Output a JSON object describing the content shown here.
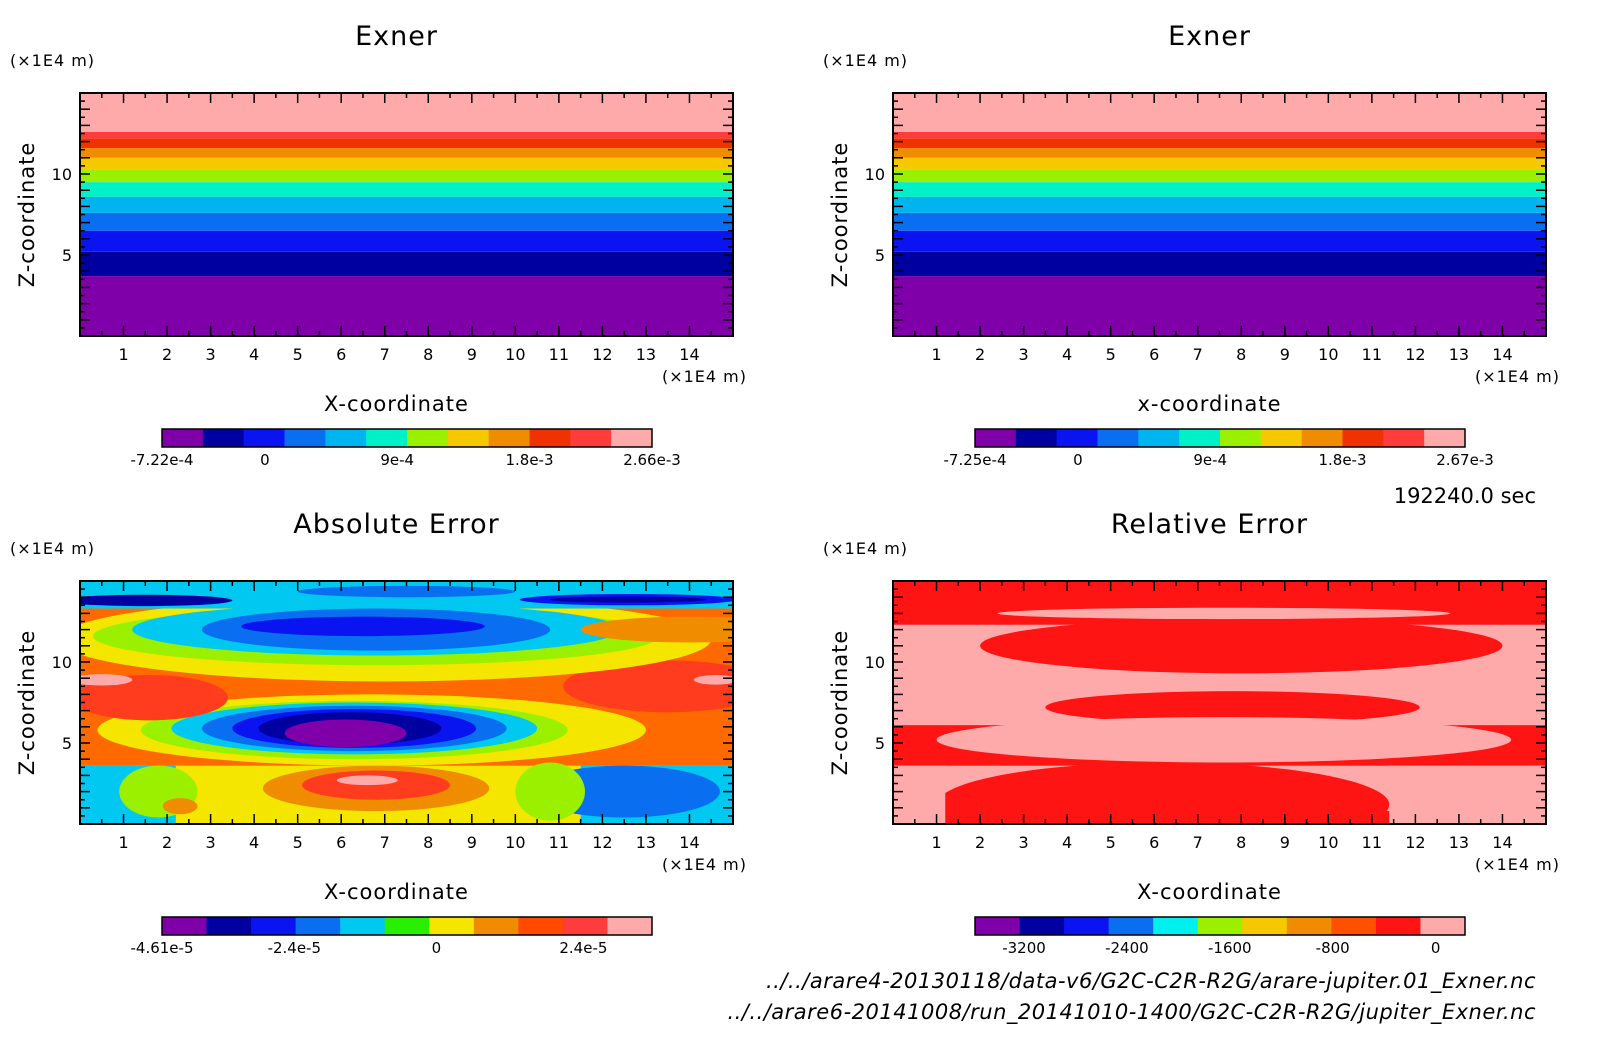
{
  "figure": {
    "time_label": "192240.0 sec",
    "file_paths": [
      "../../arare4-20130118/data-v6/G2C-C2R-R2G/arare-jupiter.01_Exner.nc",
      "../../arare6-20141008/run_20141010-1400/G2C-C2R-R2G/jupiter_Exner.nc"
    ]
  },
  "chart_data": [
    {
      "type": "contour",
      "title": "Exner",
      "xlabel": "X-coordinate",
      "ylabel": "Z-coordinate",
      "x_unit": "(×1E4 m)",
      "y_unit": "(×1E4 m)",
      "xlim": [
        0,
        15
      ],
      "ylim": [
        0,
        15
      ],
      "xticks": [
        "1",
        "2",
        "3",
        "4",
        "5",
        "6",
        "7",
        "8",
        "9",
        "10",
        "11",
        "12",
        "13",
        "14"
      ],
      "yticks": [
        "5",
        "10"
      ],
      "pattern": "horizontal",
      "bands": [
        {
          "z0": 0,
          "z1": 3.7,
          "color": "#7f00a8"
        },
        {
          "z0": 3.7,
          "z1": 5.2,
          "color": "#0000a0"
        },
        {
          "z0": 5.2,
          "z1": 6.5,
          "color": "#0a14f0"
        },
        {
          "z0": 6.5,
          "z1": 7.6,
          "color": "#0a6ef0"
        },
        {
          "z0": 7.6,
          "z1": 8.6,
          "color": "#00b4f0"
        },
        {
          "z0": 8.6,
          "z1": 9.5,
          "color": "#00f0c8"
        },
        {
          "z0": 9.5,
          "z1": 10.3,
          "color": "#9bf000"
        },
        {
          "z0": 10.3,
          "z1": 11.0,
          "color": "#f5c800"
        },
        {
          "z0": 11.0,
          "z1": 11.6,
          "color": "#f08c00"
        },
        {
          "z0": 11.6,
          "z1": 12.2,
          "color": "#f03200"
        },
        {
          "z0": 12.2,
          "z1": 12.6,
          "color": "#ff3c3c"
        },
        {
          "z0": 12.6,
          "z1": 15,
          "color": "#ffaaaa"
        }
      ],
      "colorbar": {
        "colors": [
          "#7f00a8",
          "#0000a0",
          "#0a14f0",
          "#0a6ef0",
          "#00b4f0",
          "#00f0c8",
          "#9bf000",
          "#f5c800",
          "#f08c00",
          "#f03200",
          "#ff3c3c",
          "#ffaaaa"
        ],
        "labels": [
          "-7.22e-4",
          "0",
          "9e-4",
          "1.8e-3",
          "2.66e-3"
        ],
        "label_pos": [
          0,
          0.21,
          0.48,
          0.75,
          1
        ]
      }
    },
    {
      "type": "contour",
      "title": "Exner",
      "xlabel": "x-coordinate",
      "ylabel": "Z-coordinate",
      "x_unit": "(×1E4 m)",
      "y_unit": "(×1E4 m)",
      "xlim": [
        0,
        15
      ],
      "ylim": [
        0,
        15
      ],
      "xticks": [
        "1",
        "2",
        "3",
        "4",
        "5",
        "6",
        "7",
        "8",
        "9",
        "10",
        "11",
        "12",
        "13",
        "14"
      ],
      "yticks": [
        "5",
        "10"
      ],
      "pattern": "horizontal",
      "bands": [
        {
          "z0": 0,
          "z1": 3.7,
          "color": "#7f00a8"
        },
        {
          "z0": 3.7,
          "z1": 5.2,
          "color": "#0000a0"
        },
        {
          "z0": 5.2,
          "z1": 6.5,
          "color": "#0a14f0"
        },
        {
          "z0": 6.5,
          "z1": 7.6,
          "color": "#0a6ef0"
        },
        {
          "z0": 7.6,
          "z1": 8.6,
          "color": "#00b4f0"
        },
        {
          "z0": 8.6,
          "z1": 9.5,
          "color": "#00f0c8"
        },
        {
          "z0": 9.5,
          "z1": 10.3,
          "color": "#9bf000"
        },
        {
          "z0": 10.3,
          "z1": 11.0,
          "color": "#f5c800"
        },
        {
          "z0": 11.0,
          "z1": 11.6,
          "color": "#f08c00"
        },
        {
          "z0": 11.6,
          "z1": 12.2,
          "color": "#f03200"
        },
        {
          "z0": 12.2,
          "z1": 12.6,
          "color": "#ff3c3c"
        },
        {
          "z0": 12.6,
          "z1": 15,
          "color": "#ffaaaa"
        }
      ],
      "colorbar": {
        "colors": [
          "#7f00a8",
          "#0000a0",
          "#0a14f0",
          "#0a6ef0",
          "#00b4f0",
          "#00f0c8",
          "#9bf000",
          "#f5c800",
          "#f08c00",
          "#f03200",
          "#ff3c3c",
          "#ffaaaa"
        ],
        "labels": [
          "-7.25e-4",
          "0",
          "9e-4",
          "1.8e-3",
          "2.67e-3"
        ],
        "label_pos": [
          0,
          0.21,
          0.48,
          0.75,
          1
        ]
      }
    },
    {
      "type": "contour",
      "title": "Absolute Error",
      "xlabel": "X-coordinate",
      "ylabel": "Z-coordinate",
      "x_unit": "(×1E4 m)",
      "y_unit": "(×1E4 m)",
      "xlim": [
        0,
        15
      ],
      "ylim": [
        0,
        15
      ],
      "xticks": [
        "1",
        "2",
        "3",
        "4",
        "5",
        "6",
        "7",
        "8",
        "9",
        "10",
        "11",
        "12",
        "13",
        "14"
      ],
      "yticks": [
        "5",
        "10"
      ],
      "pattern": "blobs",
      "background": "#ff6a00",
      "shapes": [
        {
          "t": "rect",
          "x0": 0,
          "x1": 15,
          "z0": 0,
          "z1": 3.6,
          "color": "#f5e600"
        },
        {
          "t": "rect",
          "x0": 0,
          "x1": 2.2,
          "z0": 0,
          "z1": 3.6,
          "color": "#00c8f0"
        },
        {
          "t": "rect",
          "x0": 11.5,
          "x1": 15,
          "z0": 0,
          "z1": 3.6,
          "color": "#00c8f0"
        },
        {
          "t": "ell",
          "cx": 12.5,
          "cz": 2.0,
          "rx": 2.2,
          "rz": 1.6,
          "color": "#0a6ef0"
        },
        {
          "t": "ell",
          "cx": 1.8,
          "cz": 2.0,
          "rx": 0.9,
          "rz": 1.6,
          "color": "#9bf000"
        },
        {
          "t": "ell",
          "cx": 10.8,
          "cz": 2.0,
          "rx": 0.8,
          "rz": 1.8,
          "color": "#9bf000"
        },
        {
          "t": "ell",
          "cx": 6.8,
          "cz": 2.2,
          "rx": 2.6,
          "rz": 1.4,
          "color": "#f08c00"
        },
        {
          "t": "ell",
          "cx": 6.8,
          "cz": 2.4,
          "rx": 1.7,
          "rz": 0.9,
          "color": "#ff3c1e"
        },
        {
          "t": "ell",
          "cx": 6.6,
          "cz": 2.7,
          "rx": 0.7,
          "rz": 0.3,
          "color": "#ffaaaa"
        },
        {
          "t": "ell",
          "cx": 2.3,
          "cz": 1.1,
          "rx": 0.4,
          "rz": 0.5,
          "color": "#f08c00"
        },
        {
          "t": "ell",
          "cx": 6.7,
          "cz": 5.8,
          "rx": 6.3,
          "rz": 2.2,
          "color": "#f5e600"
        },
        {
          "t": "ell",
          "cx": 6.3,
          "cz": 5.8,
          "rx": 4.9,
          "rz": 1.8,
          "color": "#9bf000"
        },
        {
          "t": "ell",
          "cx": 6.3,
          "cz": 5.9,
          "rx": 4.2,
          "rz": 1.6,
          "color": "#00c8f0"
        },
        {
          "t": "ell",
          "cx": 6.3,
          "cz": 5.9,
          "rx": 3.5,
          "rz": 1.4,
          "color": "#0a6ef0"
        },
        {
          "t": "ell",
          "cx": 6.3,
          "cz": 5.9,
          "rx": 2.8,
          "rz": 1.2,
          "color": "#0a14f0"
        },
        {
          "t": "ell",
          "cx": 6.2,
          "cz": 5.9,
          "rx": 2.1,
          "rz": 1.0,
          "color": "#0000a0"
        },
        {
          "t": "ell",
          "cx": 6.1,
          "cz": 5.6,
          "rx": 1.4,
          "rz": 0.85,
          "color": "#7f00a8"
        },
        {
          "t": "ell",
          "cx": 1.6,
          "cz": 7.8,
          "rx": 1.8,
          "rz": 1.4,
          "color": "#ff3c1e"
        },
        {
          "t": "ell",
          "cx": 13.5,
          "cz": 8.5,
          "rx": 2.4,
          "rz": 1.6,
          "color": "#ff3c1e"
        },
        {
          "t": "ell",
          "cx": 0.5,
          "cz": 8.9,
          "rx": 0.7,
          "rz": 0.35,
          "color": "#ffaaaa"
        },
        {
          "t": "ell",
          "cx": 14.6,
          "cz": 8.9,
          "rx": 0.5,
          "rz": 0.3,
          "color": "#ffaaaa"
        },
        {
          "t": "ell",
          "cx": 7.0,
          "cz": 11.4,
          "rx": 7.5,
          "rz": 2.6,
          "color": "#f5e600"
        },
        {
          "t": "ell",
          "cx": 6.8,
          "cz": 11.6,
          "rx": 6.5,
          "rz": 1.8,
          "color": "#9bf000"
        },
        {
          "t": "ell",
          "cx": 6.8,
          "cz": 12.0,
          "rx": 5.6,
          "rz": 1.6,
          "color": "#00c8f0"
        },
        {
          "t": "ell",
          "cx": 6.8,
          "cz": 12.0,
          "rx": 4.0,
          "rz": 1.3,
          "color": "#0a6ef0"
        },
        {
          "t": "ell",
          "cx": 6.5,
          "cz": 12.2,
          "rx": 2.8,
          "rz": 0.6,
          "color": "#0a14f0"
        },
        {
          "t": "ell",
          "cx": 14.0,
          "cz": 12.0,
          "rx": 2.5,
          "rz": 0.8,
          "color": "#f08c00"
        },
        {
          "t": "rect",
          "x0": 0,
          "x1": 15,
          "z0": 13.3,
          "z1": 15,
          "color": "#00c8f0"
        },
        {
          "t": "ell",
          "cx": 12.6,
          "cz": 13.85,
          "rx": 2.5,
          "rz": 0.35,
          "color": "#0a14f0"
        },
        {
          "t": "ell",
          "cx": 12.6,
          "cz": 13.85,
          "rx": 1.8,
          "rz": 0.18,
          "color": "#0000a0"
        },
        {
          "t": "ell",
          "cx": 1.5,
          "cz": 13.8,
          "rx": 2.0,
          "rz": 0.35,
          "color": "#0000a0"
        },
        {
          "t": "ell",
          "cx": 7.5,
          "cz": 14.35,
          "rx": 2.5,
          "rz": 0.35,
          "color": "#0a6ef0"
        }
      ],
      "colorbar": {
        "colors": [
          "#7f00a8",
          "#0000a0",
          "#0a14f0",
          "#0a6ef0",
          "#00c8f0",
          "#28f000",
          "#f5e600",
          "#f08c00",
          "#ff4a00",
          "#ff3c3c",
          "#ffaaaa"
        ],
        "labels": [
          "-4.61e-5",
          "-2.4e-5",
          "0",
          "2.4e-5"
        ],
        "label_pos": [
          0,
          0.27,
          0.56,
          0.86
        ]
      }
    },
    {
      "type": "contour",
      "title": "Relative Error",
      "xlabel": "X-coordinate",
      "ylabel": "Z-coordinate",
      "x_unit": "(×1E4 m)",
      "y_unit": "(×1E4 m)",
      "xlim": [
        0,
        15
      ],
      "ylim": [
        0,
        15
      ],
      "xticks": [
        "1",
        "2",
        "3",
        "4",
        "5",
        "6",
        "7",
        "8",
        "9",
        "10",
        "11",
        "12",
        "13",
        "14"
      ],
      "yticks": [
        "5",
        "10"
      ],
      "pattern": "blobs",
      "background": "#ffaaaa",
      "shapes": [
        {
          "t": "rect",
          "x0": 0,
          "x1": 15,
          "z0": 12.3,
          "z1": 15,
          "color": "#ff1414"
        },
        {
          "t": "ell",
          "cx": 8.0,
          "cz": 11.0,
          "rx": 6.0,
          "rz": 1.7,
          "color": "#ff1414"
        },
        {
          "t": "ell",
          "cx": 7.6,
          "cz": 13.0,
          "rx": 5.2,
          "rz": 0.35,
          "color": "#ffaaaa"
        },
        {
          "t": "ell",
          "cx": 7.8,
          "cz": 7.2,
          "rx": 4.3,
          "rz": 1.0,
          "color": "#ff1414"
        },
        {
          "t": "rect",
          "x0": 0,
          "x1": 15,
          "z0": 3.6,
          "z1": 6.1,
          "color": "#ff1414"
        },
        {
          "t": "ell",
          "cx": 7.6,
          "cz": 5.2,
          "rx": 6.6,
          "rz": 1.4,
          "color": "#ffaaaa"
        },
        {
          "t": "ell",
          "cx": 6.2,
          "cz": 1.2,
          "rx": 5.2,
          "rz": 2.6,
          "color": "#ff1414"
        },
        {
          "t": "rect",
          "x0": 0,
          "x1": 15,
          "z0": 0,
          "z1": 0.8,
          "color": "#ff1414"
        },
        {
          "t": "rect",
          "x0": 0,
          "x1": 1.2,
          "z0": 0,
          "z1": 3.6,
          "color": "#ffaaaa"
        },
        {
          "t": "rect",
          "x0": 11.4,
          "x1": 15,
          "z0": 0,
          "z1": 3.6,
          "color": "#ffaaaa"
        }
      ],
      "colorbar": {
        "colors": [
          "#7f00a8",
          "#0000a0",
          "#0a14f0",
          "#0a6ef0",
          "#00f0f0",
          "#9bf000",
          "#f5c800",
          "#f08c00",
          "#ff5000",
          "#ff1414",
          "#ffaaaa"
        ],
        "labels": [
          "-3200",
          "-2400",
          "-1600",
          "-800",
          "0"
        ],
        "label_pos": [
          0.1,
          0.31,
          0.52,
          0.73,
          0.94
        ]
      }
    }
  ]
}
